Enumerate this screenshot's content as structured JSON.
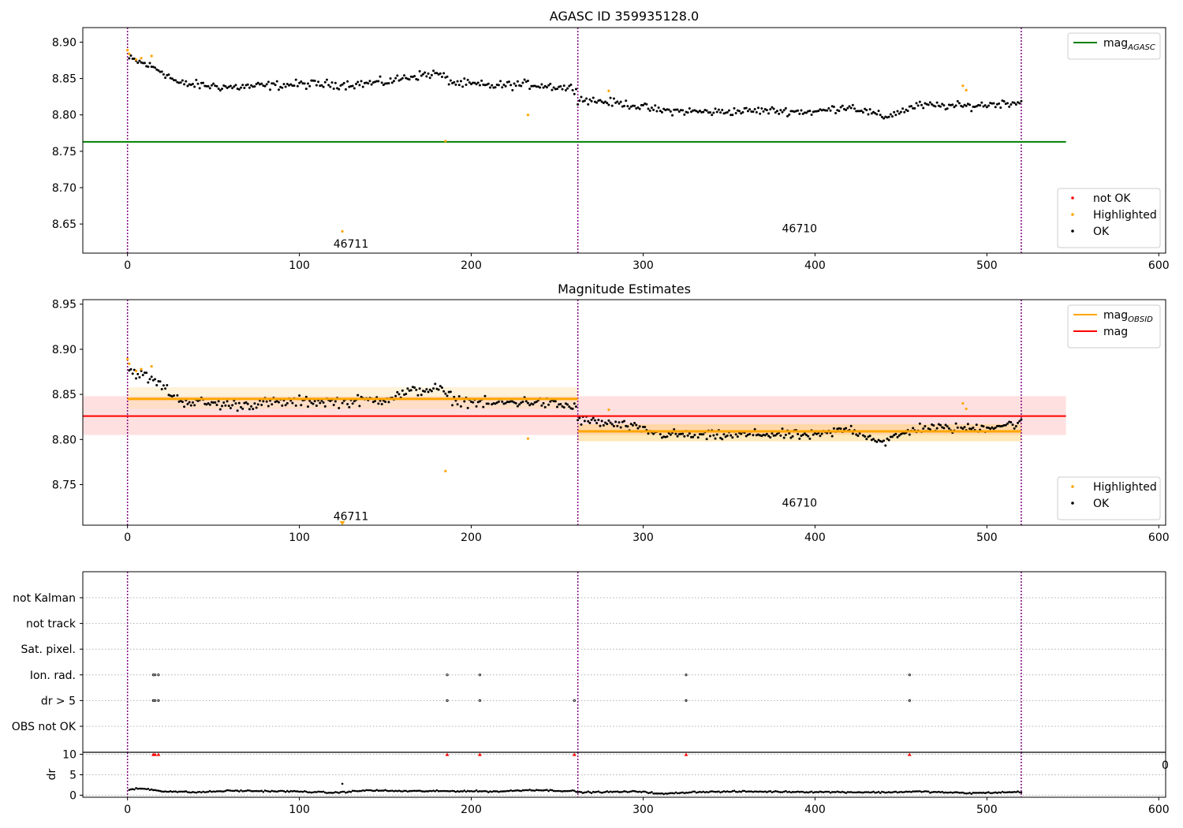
{
  "chart_data": [
    {
      "type": "scatter",
      "title": "AGASC ID 359935128.0",
      "xlabel": "",
      "ylabel": "",
      "xlim": [
        -26,
        604
      ],
      "ylim": [
        8.61,
        8.92
      ],
      "xticks": [
        0,
        100,
        200,
        300,
        400,
        500,
        600
      ],
      "yticks": [
        8.65,
        8.7,
        8.75,
        8.8,
        8.85,
        8.9
      ],
      "ytick_labels": [
        "8.65",
        "8.70",
        "8.75",
        "8.80",
        "8.85",
        "8.90"
      ],
      "obs_boundaries": [
        0,
        262,
        520
      ],
      "obs_labels": [
        {
          "text": "46711",
          "x": 130,
          "y": 8.623
        },
        {
          "text": "46710",
          "x": 391,
          "y": 8.644
        }
      ],
      "lines": [
        {
          "name": "mag_AGASC",
          "label_main": "mag",
          "label_sub": "AGASC",
          "value": 8.763,
          "x": [
            -26,
            546
          ],
          "color": "#008000"
        }
      ],
      "series": [
        {
          "name": "not OK",
          "color": "#ff0000",
          "points": []
        },
        {
          "name": "Highlighted",
          "color": "#ffa500",
          "points": [
            [
              0,
              8.889
            ],
            [
              1,
              8.884
            ],
            [
              5,
              8.876
            ],
            [
              8,
              8.878
            ],
            [
              14,
              8.881
            ],
            [
              125,
              8.64
            ],
            [
              185,
              8.764
            ],
            [
              233,
              8.8
            ],
            [
              280,
              8.833
            ],
            [
              486,
              8.84
            ],
            [
              488,
              8.834
            ]
          ]
        },
        {
          "name": "OK",
          "color": "#000000",
          "generated": true,
          "segments": [
            {
              "x0": 1,
              "x1": 261,
              "step": 1,
              "base": [
                [
                  0,
                  8.878
                ],
                [
                  10,
                  8.87
                ],
                [
                  20,
                  8.86
                ],
                [
                  30,
                  8.843
                ],
                [
                  60,
                  8.838
                ],
                [
                  100,
                  8.842
                ],
                [
                  130,
                  8.842
                ],
                [
                  150,
                  8.845
                ],
                [
                  165,
                  8.853
                ],
                [
                  180,
                  8.857
                ],
                [
                  190,
                  8.844
                ],
                [
                  210,
                  8.84
                ],
                [
                  235,
                  8.842
                ],
                [
                  261,
                  8.836
                ]
              ],
              "noise": 0.009
            },
            {
              "x0": 262,
              "x1": 520,
              "step": 1,
              "base": [
                [
                  262,
                  8.822
                ],
                [
                  290,
                  8.815
                ],
                [
                  310,
                  8.806
                ],
                [
                  340,
                  8.804
                ],
                [
                  370,
                  8.806
                ],
                [
                  400,
                  8.804
                ],
                [
                  420,
                  8.812
                ],
                [
                  440,
                  8.797
                ],
                [
                  460,
                  8.813
                ],
                [
                  490,
                  8.812
                ],
                [
                  520,
                  8.818
                ]
              ],
              "noise": 0.008
            }
          ]
        }
      ],
      "legends": [
        {
          "placement": "upper right",
          "items": [
            {
              "label_main": "mag",
              "label_sub": "AGASC",
              "marker": "line",
              "color": "#008000"
            }
          ]
        },
        {
          "placement": "lower right",
          "items": [
            {
              "label": "not OK",
              "marker": "dot",
              "color": "#ff0000"
            },
            {
              "label": "Highlighted",
              "marker": "dot",
              "color": "#ffa500"
            },
            {
              "label": "OK",
              "marker": "dot",
              "color": "#000000"
            }
          ]
        }
      ]
    },
    {
      "type": "scatter",
      "title": "Magnitude Estimates",
      "xlabel": "",
      "ylabel": "",
      "xlim": [
        -26,
        604
      ],
      "ylim": [
        8.705,
        8.955
      ],
      "xticks": [
        0,
        100,
        200,
        300,
        400,
        500,
        600
      ],
      "yticks": [
        8.75,
        8.8,
        8.85,
        8.9,
        8.95
      ],
      "ytick_labels": [
        "8.75",
        "8.80",
        "8.85",
        "8.90",
        "8.95"
      ],
      "obs_boundaries": [
        0,
        262,
        520
      ],
      "obs_labels": [
        {
          "text": "46711",
          "x": 130,
          "y": 8.715
        },
        {
          "text": "46710",
          "x": 391,
          "y": 8.73
        }
      ],
      "bands": [
        {
          "name": "mag",
          "x": [
            -26,
            546
          ],
          "y": [
            8.805,
            8.848
          ],
          "color": "#ffcccc",
          "opacity": 0.6
        },
        {
          "name": "mag_OBSID 46711",
          "x": [
            0,
            262
          ],
          "y": [
            8.834,
            8.858
          ],
          "color": "#ffd999",
          "opacity": 0.35
        },
        {
          "name": "mag_OBSID 46710",
          "x": [
            262,
            520
          ],
          "y": [
            8.798,
            8.817
          ],
          "color": "#ffcc66",
          "opacity": 0.45
        }
      ],
      "lines": [
        {
          "name": "mag",
          "label": "mag",
          "value": 8.826,
          "x": [
            -26,
            546
          ],
          "color": "#ff0000"
        },
        {
          "name": "mag_OBSID 46711",
          "label_main": "mag",
          "label_sub": "OBSID",
          "value": 8.845,
          "x": [
            0,
            262
          ],
          "color": "#ffa500"
        },
        {
          "name": "mag_OBSID 46710",
          "label_main": "mag",
          "label_sub": "OBSID",
          "value": 8.809,
          "x": [
            262,
            520
          ],
          "color": "#ffa500"
        }
      ],
      "series": [
        {
          "name": "Highlighted",
          "color": "#ffa500",
          "points": [
            [
              0,
              8.889
            ],
            [
              1,
              8.884
            ],
            [
              5,
              8.876
            ],
            [
              8,
              8.878
            ],
            [
              14,
              8.881
            ],
            [
              185,
              8.765
            ],
            [
              233,
              8.801
            ],
            [
              280,
              8.833
            ],
            [
              486,
              8.84
            ],
            [
              488,
              8.834
            ]
          ]
        },
        {
          "name": "OK",
          "color": "#000000",
          "generated": true,
          "segments": [
            {
              "x0": 1,
              "x1": 261,
              "step": 1,
              "base": [
                [
                  0,
                  8.878
                ],
                [
                  10,
                  8.87
                ],
                [
                  20,
                  8.86
                ],
                [
                  30,
                  8.843
                ],
                [
                  60,
                  8.838
                ],
                [
                  100,
                  8.842
                ],
                [
                  130,
                  8.842
                ],
                [
                  150,
                  8.845
                ],
                [
                  165,
                  8.853
                ],
                [
                  180,
                  8.857
                ],
                [
                  190,
                  8.844
                ],
                [
                  210,
                  8.84
                ],
                [
                  235,
                  8.842
                ],
                [
                  261,
                  8.836
                ]
              ],
              "noise": 0.009
            },
            {
              "x0": 262,
              "x1": 520,
              "step": 1,
              "base": [
                [
                  262,
                  8.822
                ],
                [
                  290,
                  8.815
                ],
                [
                  310,
                  8.806
                ],
                [
                  340,
                  8.804
                ],
                [
                  370,
                  8.806
                ],
                [
                  400,
                  8.804
                ],
                [
                  420,
                  8.812
                ],
                [
                  440,
                  8.797
                ],
                [
                  460,
                  8.813
                ],
                [
                  490,
                  8.812
                ],
                [
                  520,
                  8.818
                ]
              ],
              "noise": 0.008
            }
          ]
        }
      ],
      "markers": [
        {
          "name": "out-of-range",
          "x": 125,
          "y": 8.706,
          "shape": "triangle-down",
          "color": "#ffa500"
        }
      ],
      "legends": [
        {
          "placement": "upper right",
          "items": [
            {
              "label_main": "mag",
              "label_sub": "OBSID",
              "marker": "line",
              "color": "#ffa500"
            },
            {
              "label": "mag",
              "marker": "line",
              "color": "#ff0000"
            }
          ]
        },
        {
          "placement": "lower right",
          "items": [
            {
              "label": "Highlighted",
              "marker": "dot",
              "color": "#ffa500"
            },
            {
              "label": "OK",
              "marker": "dot",
              "color": "#000000"
            }
          ]
        }
      ]
    },
    {
      "type": "scatter",
      "title": "",
      "xlim": [
        -26,
        604
      ],
      "categories": [
        "not Kalman",
        "not track",
        "Sat. pixel.",
        "Ion. rad.",
        "dr > 5",
        "OBS not OK"
      ],
      "obs_boundaries": [
        0,
        262,
        520
      ],
      "flags": [
        {
          "category": "Ion. rad.",
          "x": [
            15,
            16,
            18,
            186,
            205,
            325,
            455
          ]
        },
        {
          "category": "dr > 5",
          "x": [
            15,
            16,
            18,
            186,
            205,
            260,
            325,
            455
          ]
        }
      ]
    },
    {
      "type": "scatter",
      "title": "",
      "xlabel": "",
      "ylabel": "dr",
      "xlim": [
        -26,
        604
      ],
      "ylim": [
        -0.5,
        10.5
      ],
      "xticks": [
        0,
        100,
        200,
        300,
        400,
        500,
        600
      ],
      "yticks": [
        0,
        5,
        10
      ],
      "ytick_labels": [
        "0",
        "5",
        "10"
      ],
      "obs_boundaries": [
        0,
        262,
        520
      ],
      "series": [
        {
          "name": "dr",
          "color": "#000000",
          "generated": true,
          "segments": [
            {
              "x0": 1,
              "x1": 520,
              "step": 1,
              "base": [
                [
                  0,
                  1.2
                ],
                [
                  5,
                  1.6
                ],
                [
                  10,
                  1.6
                ],
                [
                  20,
                  1.0
                ],
                [
                  40,
                  0.7
                ],
                [
                  60,
                  1.1
                ],
                [
                  100,
                  0.9
                ],
                [
                  120,
                  0.6
                ],
                [
                  140,
                  1.2
                ],
                [
                  160,
                  1.0
                ],
                [
                  180,
                  1.0
                ],
                [
                  200,
                  1.0
                ],
                [
                  215,
                  0.9
                ],
                [
                  235,
                  1.3
                ],
                [
                  260,
                  1.0
                ],
                [
                  263,
                  0.7
                ],
                [
                  300,
                  0.9
                ],
                [
                  310,
                  0.3
                ],
                [
                  330,
                  0.8
                ],
                [
                  360,
                  0.9
                ],
                [
                  400,
                  0.8
                ],
                [
                  440,
                  0.7
                ],
                [
                  460,
                  0.9
                ],
                [
                  490,
                  0.5
                ],
                [
                  520,
                  0.8
                ]
              ],
              "noise": 0.25
            }
          ]
        },
        {
          "name": "outlier",
          "color": "#000000",
          "points": [
            [
              125,
              2.8
            ]
          ]
        }
      ],
      "clipped_markers": {
        "shape": "triangle-up",
        "color": "#ff0000",
        "y": 10,
        "x": [
          15,
          16,
          18,
          186,
          205,
          260,
          325,
          455
        ]
      },
      "cut_tick_fragment": "0"
    }
  ]
}
